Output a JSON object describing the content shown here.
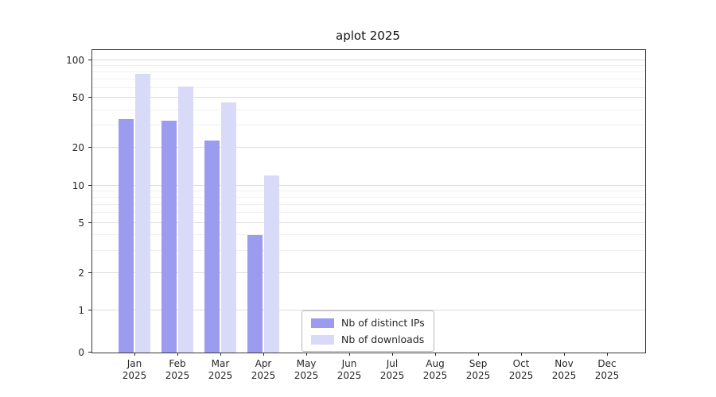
{
  "chart_data": {
    "type": "bar",
    "title": "aplot 2025",
    "categories": [
      "Jan 2025",
      "Feb 2025",
      "Mar 2025",
      "Apr 2025",
      "May 2025",
      "Jun 2025",
      "Jul 2025",
      "Aug 2025",
      "Sep 2025",
      "Oct 2025",
      "Nov 2025",
      "Dec 2025"
    ],
    "series": [
      {
        "name": "Nb of distinct IPs",
        "color": "#9b9bef",
        "values": [
          34,
          33,
          23,
          4,
          0,
          0,
          0,
          0,
          0,
          0,
          0,
          0
        ]
      },
      {
        "name": "Nb of downloads",
        "color": "#d9d9f8",
        "values": [
          78,
          62,
          46,
          12,
          0,
          0,
          0,
          0,
          0,
          0,
          0,
          0
        ]
      }
    ],
    "xlabel": "",
    "ylabel": "",
    "yscale": "symlog",
    "ylim": [
      0,
      100
    ],
    "yticks": [
      0,
      1,
      2,
      5,
      10,
      20,
      50,
      100
    ],
    "minor_yticks": [
      3,
      4,
      6,
      7,
      8,
      9,
      30,
      40,
      60,
      70,
      80,
      90
    ],
    "grid": true,
    "legend_position": "lower center"
  },
  "colors": {
    "axis": "#262626",
    "grid_major": "#dcdcdc",
    "grid_minor": "#f0f0f0",
    "background": "#ffffff"
  }
}
